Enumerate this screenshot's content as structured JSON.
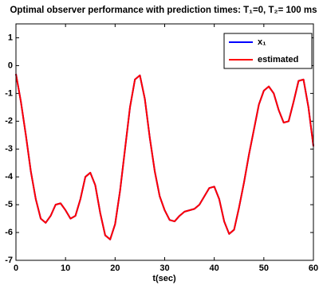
{
  "chart_data": {
    "type": "line",
    "title": "Optimal observer performance with prediction times: T₁=0, T₂= 100 ms",
    "x_label": "t(sec)",
    "x": [
      0,
      1,
      2,
      3,
      4,
      5,
      6,
      7,
      8,
      9,
      10,
      11,
      12,
      13,
      14,
      15,
      16,
      17,
      18,
      19,
      20,
      21,
      22,
      23,
      24,
      25,
      26,
      27,
      28,
      29,
      30,
      31,
      32,
      33,
      34,
      35,
      36,
      37,
      38,
      39,
      40,
      41,
      42,
      43,
      44,
      45,
      46,
      47,
      48,
      49,
      50,
      51,
      52,
      53,
      54,
      55,
      56,
      57,
      58,
      59,
      60
    ],
    "series": [
      {
        "name": "x₁",
        "color": "#0000ff",
        "values": [
          -0.3,
          -1.3,
          -2.5,
          -3.8,
          -4.8,
          -5.5,
          -5.65,
          -5.4,
          -5.0,
          -4.95,
          -5.2,
          -5.5,
          -5.4,
          -4.8,
          -4.0,
          -3.85,
          -4.3,
          -5.3,
          -6.1,
          -6.25,
          -5.7,
          -4.5,
          -3.0,
          -1.5,
          -0.5,
          -0.35,
          -1.2,
          -2.6,
          -3.8,
          -4.7,
          -5.2,
          -5.55,
          -5.6,
          -5.4,
          -5.25,
          -5.2,
          -5.15,
          -5.0,
          -4.7,
          -4.4,
          -4.35,
          -4.8,
          -5.6,
          -6.05,
          -5.9,
          -5.1,
          -4.2,
          -3.2,
          -2.3,
          -1.4,
          -0.9,
          -0.75,
          -1.0,
          -1.6,
          -2.05,
          -2.0,
          -1.3,
          -0.55,
          -0.5,
          -1.5,
          -2.9
        ]
      },
      {
        "name": "estimated",
        "color": "#ff0000",
        "values": [
          -0.3,
          -1.3,
          -2.5,
          -3.8,
          -4.8,
          -5.5,
          -5.65,
          -5.4,
          -5.0,
          -4.95,
          -5.2,
          -5.5,
          -5.4,
          -4.8,
          -4.0,
          -3.85,
          -4.3,
          -5.3,
          -6.1,
          -6.25,
          -5.7,
          -4.5,
          -3.0,
          -1.5,
          -0.5,
          -0.35,
          -1.2,
          -2.6,
          -3.8,
          -4.7,
          -5.2,
          -5.55,
          -5.6,
          -5.4,
          -5.25,
          -5.2,
          -5.15,
          -5.0,
          -4.7,
          -4.4,
          -4.35,
          -4.8,
          -5.6,
          -6.05,
          -5.9,
          -5.1,
          -4.2,
          -3.2,
          -2.3,
          -1.4,
          -0.9,
          -0.75,
          -1.0,
          -1.6,
          -2.05,
          -2.0,
          -1.3,
          -0.55,
          -0.5,
          -1.5,
          -2.9
        ]
      }
    ],
    "xlim": [
      0,
      60
    ],
    "xticks": [
      0,
      10,
      20,
      30,
      40,
      50,
      60
    ],
    "ylim": [
      -7,
      1.5
    ],
    "yticks": [
      -7,
      -6,
      -5,
      -4,
      -3,
      -2,
      -1,
      0,
      1
    ],
    "grid": false,
    "legend": "upper right"
  }
}
